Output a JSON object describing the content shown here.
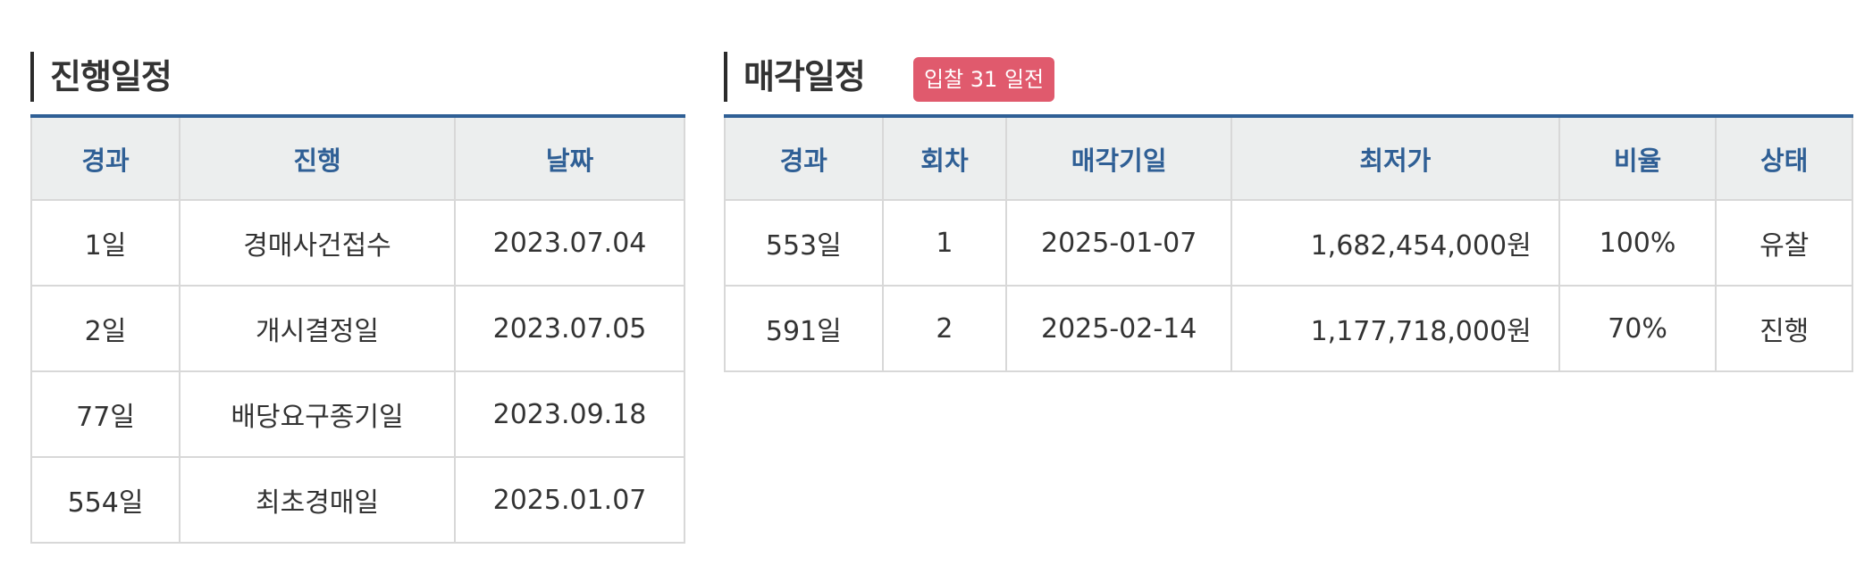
{
  "progress": {
    "title": "진행일정",
    "columns": [
      "경과",
      "진행",
      "날짜"
    ],
    "rows": [
      {
        "elapsed": "1일",
        "stage": "경매사건접수",
        "date": "2023.07.04"
      },
      {
        "elapsed": "2일",
        "stage": "개시결정일",
        "date": "2023.07.05"
      },
      {
        "elapsed": "77일",
        "stage": "배당요구종기일",
        "date": "2023.09.18"
      },
      {
        "elapsed": "554일",
        "stage": "최초경매일",
        "date": "2025.01.07"
      }
    ]
  },
  "sale": {
    "title": "매각일정",
    "badge": "입찰 31 일전",
    "columns": [
      "경과",
      "회차",
      "매각기일",
      "최저가",
      "비율",
      "상태"
    ],
    "rows": [
      {
        "elapsed": "553일",
        "round": "1",
        "sale_date": "2025-01-07",
        "min_price": "1,682,454,000원",
        "ratio": "100%",
        "status": "유찰"
      },
      {
        "elapsed": "591일",
        "round": "2",
        "sale_date": "2025-02-14",
        "min_price": "1,177,718,000원",
        "ratio": "70%",
        "status": "진행"
      }
    ]
  },
  "colors": {
    "accent": "#2f5f95",
    "badge": "#e05a6d",
    "header_bg": "#eceeee",
    "border": "#d8d8d8"
  }
}
